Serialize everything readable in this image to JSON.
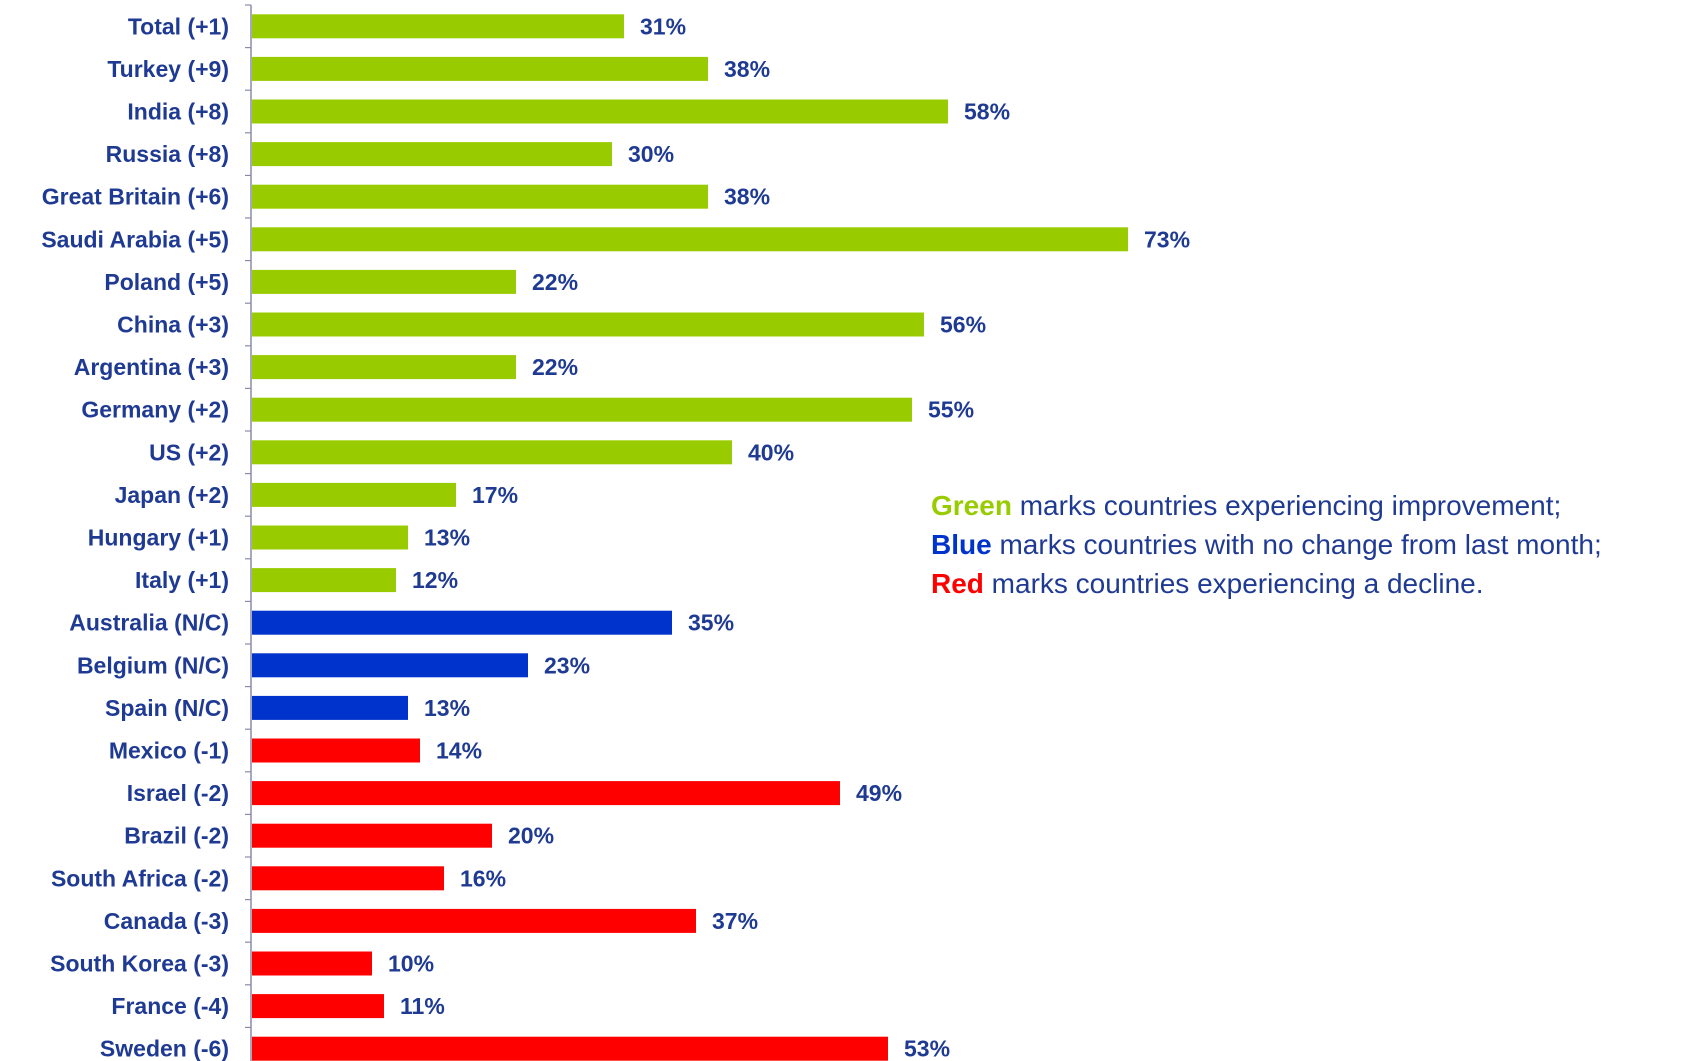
{
  "chart_data": {
    "type": "bar",
    "orientation": "horizontal",
    "categories": [
      "Total (+1)",
      "Turkey (+9)",
      "India (+8)",
      "Russia (+8)",
      "Great Britain (+6)",
      "Saudi Arabia (+5)",
      "Poland (+5)",
      "China (+3)",
      "Argentina (+3)",
      "Germany (+2)",
      "US (+2)",
      "Japan (+2)",
      "Hungary (+1)",
      "Italy (+1)",
      "Australia (N/C)",
      "Belgium (N/C)",
      "Spain (N/C)",
      "Mexico (-1)",
      "Israel (-2)",
      "Brazil (-2)",
      "South Africa (-2)",
      "Canada (-3)",
      "South Korea (-3)",
      "France (-4)",
      "Sweden (-6)"
    ],
    "values": [
      31,
      38,
      58,
      30,
      38,
      73,
      22,
      56,
      22,
      55,
      40,
      17,
      13,
      12,
      35,
      23,
      13,
      14,
      49,
      20,
      16,
      37,
      10,
      11,
      53
    ],
    "value_labels": [
      "31%",
      "38%",
      "58%",
      "30%",
      "38%",
      "73%",
      "22%",
      "56%",
      "22%",
      "55%",
      "40%",
      "17%",
      "13%",
      "12%",
      "35%",
      "23%",
      "13%",
      "14%",
      "49%",
      "20%",
      "16%",
      "37%",
      "10%",
      "11%",
      "53%"
    ],
    "status": [
      "up",
      "up",
      "up",
      "up",
      "up",
      "up",
      "up",
      "up",
      "up",
      "up",
      "up",
      "up",
      "up",
      "up",
      "same",
      "same",
      "same",
      "down",
      "down",
      "down",
      "down",
      "down",
      "down",
      "down",
      "down"
    ],
    "xlim": [
      0,
      100
    ],
    "grid": false,
    "title": "",
    "xlabel": "",
    "ylabel": ""
  },
  "colors": {
    "up": "#99cc00",
    "same": "#0033cc",
    "down": "#ff0000",
    "label_text": "#1f3a93",
    "axis": "#8a8aa8"
  },
  "legend": {
    "lines": [
      {
        "keyword": "Green",
        "rest": " marks countries experiencing improvement;",
        "color": "#99cc00"
      },
      {
        "keyword": "Blue",
        "rest": " marks countries with no change from last month;",
        "color": "#0033cc"
      },
      {
        "keyword": "Red",
        "rest": " marks countries experiencing a decline.",
        "color": "#ff0000"
      }
    ]
  }
}
